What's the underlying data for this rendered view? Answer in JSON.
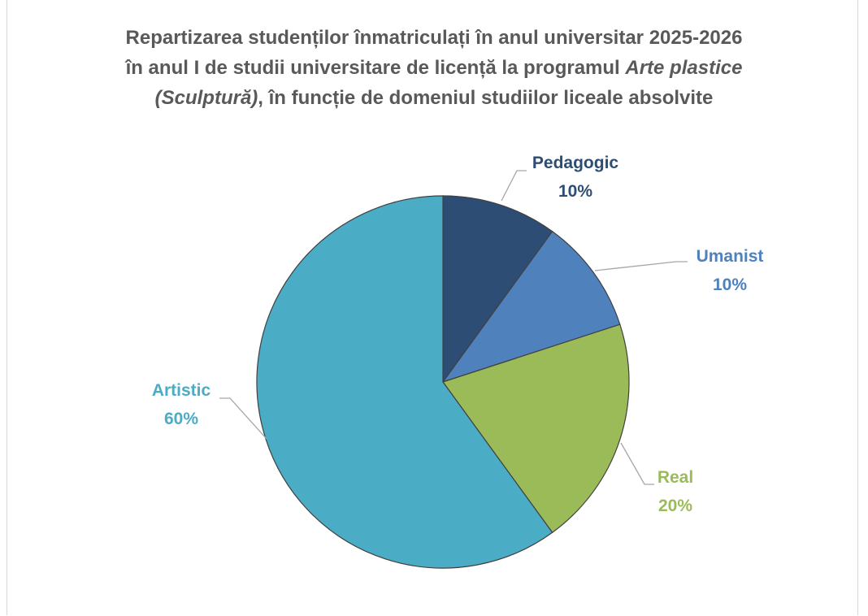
{
  "chart_data": {
    "type": "pie",
    "title_lines": [
      "Repartizarea studenților înmatriculați în anul universitar 2025-2026",
      "în anul I de studii universitare de licență la programul ",
      "Arte plastice",
      "(Sculptură)",
      ", în funcție de domeniul studiilor liceale absolvite"
    ],
    "slices": [
      {
        "label": "Pedagogic",
        "value": 10,
        "pct_label": "10%",
        "color": "#2e4d74"
      },
      {
        "label": "Umanist",
        "value": 10,
        "pct_label": "10%",
        "color": "#4f81bd"
      },
      {
        "label": "Real",
        "value": 20,
        "pct_label": "20%",
        "color": "#9bbb59"
      },
      {
        "label": "Artistic",
        "value": 60,
        "pct_label": "60%",
        "color": "#4bacc6"
      }
    ],
    "start_angle": "12 o'clock",
    "direction": "clockwise",
    "legend": "none"
  }
}
